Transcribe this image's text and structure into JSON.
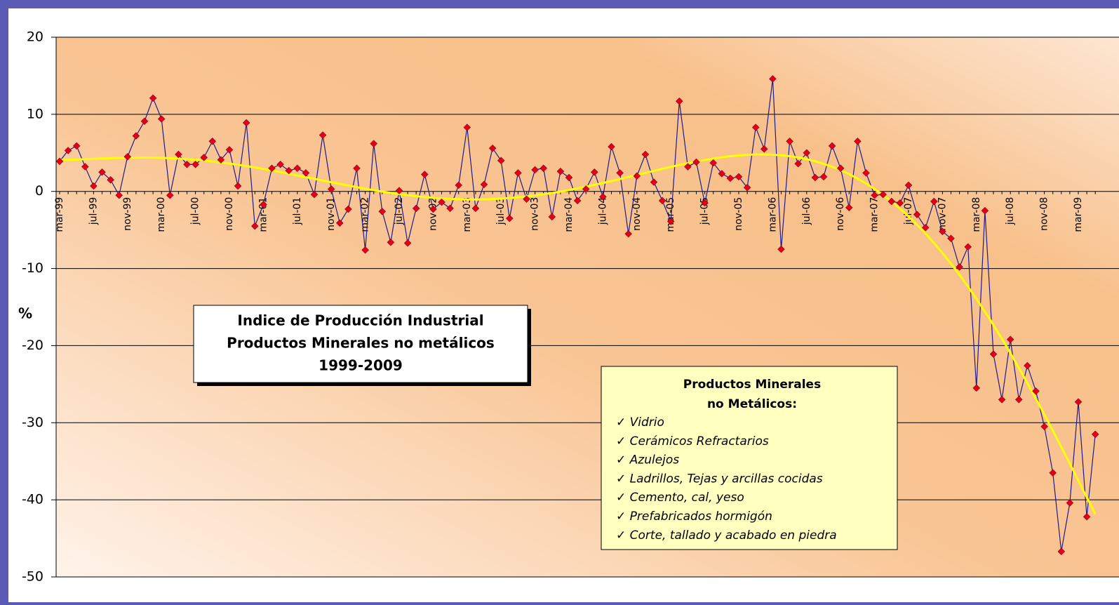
{
  "chart_data": {
    "type": "line",
    "title": [
      "Indice de Producción Industrial",
      "Productos Minerales no metálicos",
      "1999-2009"
    ],
    "y_label": "%",
    "notes": {
      "heading": [
        "Productos Minerales",
        "no Metálicos:"
      ],
      "items": [
        "✓ Vidrio",
        "✓ Cerámicos Refractarios",
        "✓ Azulejos",
        "✓ Ladrillos, Tejas y arcillas cocidas",
        "✓ Cemento, cal, yeso",
        "✓ Prefabricados hormigón",
        "✓ Corte, tallado y acabado en piedra"
      ]
    },
    "categories": [
      "mar-99",
      null,
      null,
      null,
      "jul-99",
      null,
      null,
      null,
      "nov-99",
      null,
      null,
      null,
      "mar-00",
      null,
      null,
      null,
      "jul-00",
      null,
      null,
      null,
      "nov-00",
      null,
      null,
      null,
      "mar-01",
      null,
      null,
      null,
      "jul-01",
      null,
      null,
      null,
      "nov-01",
      null,
      null,
      null,
      "mar-02",
      null,
      null,
      null,
      "jul-02",
      null,
      null,
      null,
      "nov-02",
      null,
      null,
      null,
      "mar-03",
      null,
      null,
      null,
      "jul-03",
      null,
      null,
      null,
      "nov-03",
      null,
      null,
      null,
      "mar-04",
      null,
      null,
      null,
      "jul-04",
      null,
      null,
      null,
      "nov-04",
      null,
      null,
      null,
      "mar-05",
      null,
      null,
      null,
      "jul-05",
      null,
      null,
      null,
      "nov-05",
      null,
      null,
      null,
      "mar-06",
      null,
      null,
      null,
      "jul-06",
      null,
      null,
      null,
      "nov-06",
      null,
      null,
      null,
      "mar-07",
      null,
      null,
      null,
      "jul-07",
      null,
      null,
      null,
      "nov-07",
      null,
      null,
      null,
      "mar-08",
      null,
      null,
      null,
      "jul-08",
      null,
      null,
      null,
      "nov-08",
      null,
      null,
      null,
      "mar-09",
      null,
      null
    ],
    "series": [
      {
        "color": "#1c1c8c",
        "marker_color": "#e0001c",
        "values": [
          3.9,
          5.3,
          5.9,
          3.2,
          0.7,
          2.5,
          1.5,
          -0.5,
          4.5,
          7.2,
          9.1,
          12.1,
          9.4,
          -0.5,
          4.8,
          3.5,
          3.5,
          4.4,
          6.5,
          4.1,
          5.4,
          0.7,
          8.9,
          -4.5,
          -1.7,
          3.0,
          3.5,
          2.7,
          3.0,
          2.4,
          -0.4,
          7.3,
          0.3,
          -4.1,
          -2.3,
          3.0,
          -7.6,
          6.2,
          -2.6,
          -6.6,
          0.1,
          -6.7,
          -2.2,
          2.2,
          -2.3,
          -1.4,
          -2.2,
          0.8,
          8.3,
          -2.2,
          0.9,
          5.6,
          4.0,
          -3.5,
          2.4,
          -1.0,
          2.8,
          3.0,
          -3.3,
          2.6,
          1.8,
          -1.2,
          0.3,
          2.5,
          -0.7,
          5.8,
          2.4,
          -5.5,
          2.0,
          4.8,
          1.2,
          -1.2,
          -3.9,
          11.7,
          3.2,
          3.8,
          -1.5,
          3.7,
          2.3,
          1.7,
          1.9,
          0.5,
          8.3,
          5.5,
          14.6,
          -7.5,
          6.5,
          3.6,
          5.0,
          1.8,
          1.9,
          5.9,
          3.0,
          -2.1,
          6.5,
          2.4,
          -0.5,
          -0.4,
          -1.3,
          -1.5,
          0.8,
          -3.0,
          -4.7,
          -1.3,
          -5.2,
          -6.1,
          -9.8,
          -7.2,
          -25.5,
          -2.5,
          -21.1,
          -27.0,
          -19.2,
          -27.0,
          -22.6,
          -25.9,
          -30.5,
          -36.5,
          -46.7,
          -40.4,
          -27.3,
          -42.2,
          -31.5
        ]
      }
    ],
    "trendline": {
      "color": "#ffff00",
      "degree": 6
    },
    "ylim": [
      -50,
      20
    ],
    "yticks": [
      -50,
      -40,
      -30,
      -20,
      -10,
      0,
      10,
      20
    ],
    "grid": true
  }
}
